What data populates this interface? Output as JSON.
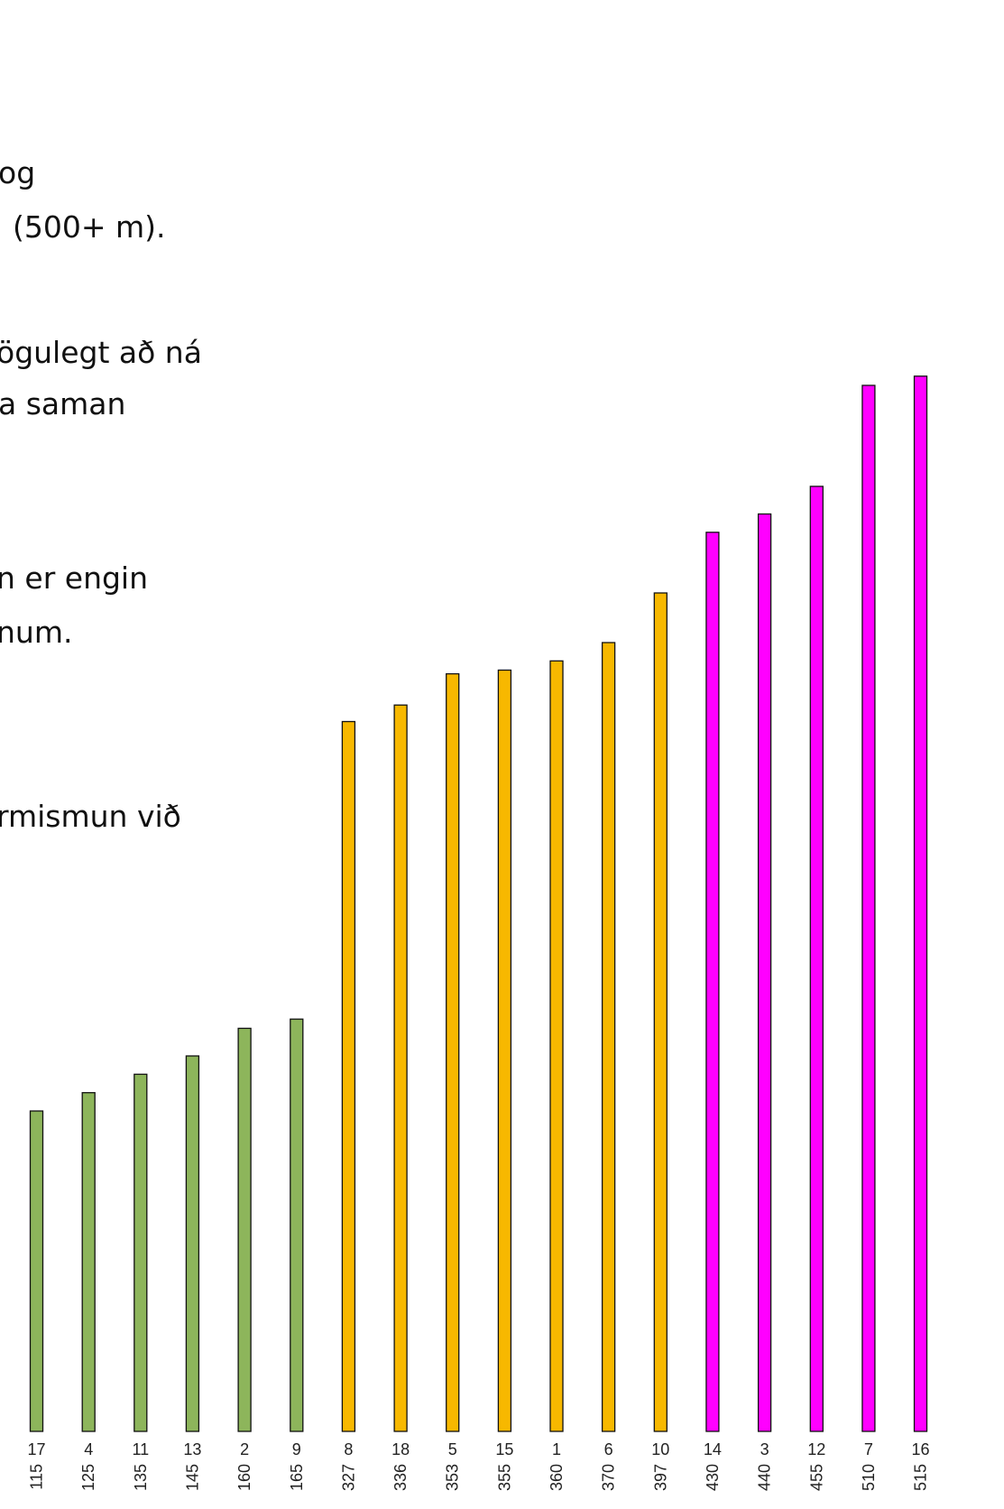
{
  "text_lines": [
    "og",
    "(500+ m).",
    "ögulegt að ná",
    "a saman",
    "n er engin",
    "num.",
    "rmismun við"
  ],
  "chart_data": {
    "type": "bar",
    "title": "",
    "xlabel": "",
    "ylabel": "",
    "categories": [
      "17",
      "4",
      "11",
      "13",
      "2",
      "9",
      "8",
      "18",
      "5",
      "15",
      "1",
      "6",
      "10",
      "14",
      "3",
      "12",
      "7",
      "16"
    ],
    "values": [
      115,
      125,
      135,
      145,
      160,
      165,
      327,
      336,
      353,
      355,
      360,
      370,
      397,
      430,
      440,
      455,
      510,
      515
    ],
    "groups": [
      "a",
      "a",
      "a",
      "a",
      "a",
      "a",
      "b",
      "b",
      "b",
      "b",
      "b",
      "b",
      "b",
      "c",
      "c",
      "c",
      "c",
      "c"
    ],
    "group_colors": {
      "a": "#8db55b",
      "b": "#f7b800",
      "c": "#ff00ff"
    },
    "grid": false,
    "legend": "none"
  }
}
